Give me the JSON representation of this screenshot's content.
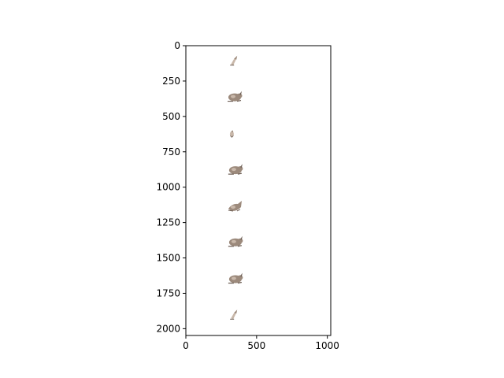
{
  "chart_data": {
    "type": "scatter",
    "title": "",
    "xlabel": "",
    "ylabel": "",
    "xlim": [
      0,
      1024
    ],
    "ylim": [
      2048,
      0
    ],
    "y_inverted": true,
    "grid": false,
    "x_ticks": [
      {
        "value": 0,
        "label": "0"
      },
      {
        "value": 500,
        "label": "500"
      },
      {
        "value": 1000,
        "label": "1000"
      }
    ],
    "y_ticks": [
      {
        "value": 0,
        "label": "0"
      },
      {
        "value": 250,
        "label": "250"
      },
      {
        "value": 500,
        "label": "500"
      },
      {
        "value": 750,
        "label": "750"
      },
      {
        "value": 1000,
        "label": "1000"
      },
      {
        "value": 1250,
        "label": "1250"
      },
      {
        "value": 1500,
        "label": "1500"
      },
      {
        "value": 1750,
        "label": "1750"
      },
      {
        "value": 2000,
        "label": "2000"
      }
    ],
    "points": [
      {
        "x": 335,
        "y": 110,
        "variant": "small-hop"
      },
      {
        "x": 345,
        "y": 365,
        "variant": "crouch"
      },
      {
        "x": 325,
        "y": 625,
        "variant": "tiny"
      },
      {
        "x": 350,
        "y": 880,
        "variant": "crouch"
      },
      {
        "x": 345,
        "y": 1135,
        "variant": "leap"
      },
      {
        "x": 350,
        "y": 1390,
        "variant": "crouch"
      },
      {
        "x": 350,
        "y": 1650,
        "variant": "crouch"
      },
      {
        "x": 335,
        "y": 1905,
        "variant": "small-hop"
      }
    ],
    "marker_colors": {
      "body": "#9c8a7c",
      "shade": "#6e5f55",
      "light": "#c9b8aa"
    }
  }
}
